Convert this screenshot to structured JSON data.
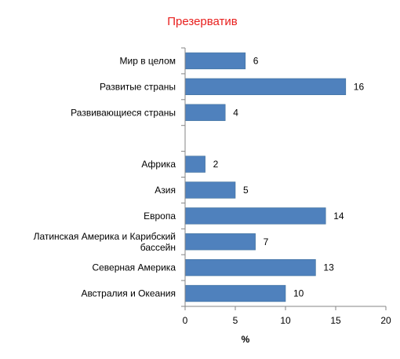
{
  "chart_data": {
    "type": "bar",
    "orientation": "horizontal",
    "title": "Презерватив",
    "xlabel": "%",
    "ylabel": "",
    "xlim": [
      0,
      20
    ],
    "xticks": [
      0,
      5,
      10,
      15,
      20
    ],
    "grid": false,
    "legend": "none",
    "data_labels": true,
    "categories": [
      "Мир в целом",
      "Развитые страны",
      "Развивающиеся страны",
      "",
      "Африка",
      "Азия",
      "Европа",
      "Латинская Америка и Карибский бассейн",
      "Северная Америка",
      "Австралия и Океания"
    ],
    "category_lines": [
      [
        "Мир в целом"
      ],
      [
        "Развитые страны"
      ],
      [
        "Развивающиеся страны"
      ],
      [],
      [
        "Африка"
      ],
      [
        "Азия"
      ],
      [
        "Европа"
      ],
      [
        "Латинская Америка и Карибский",
        "бассейн"
      ],
      [
        "Северная Америка"
      ],
      [
        "Австралия и Океания"
      ]
    ],
    "values": [
      6,
      16,
      4,
      null,
      2,
      5,
      14,
      7,
      13,
      10
    ]
  },
  "colors": {
    "bar": "#4F81BD",
    "bar_edge": "#41719C",
    "title": "#E8201E",
    "text": "#000000",
    "axis": "#868686"
  }
}
